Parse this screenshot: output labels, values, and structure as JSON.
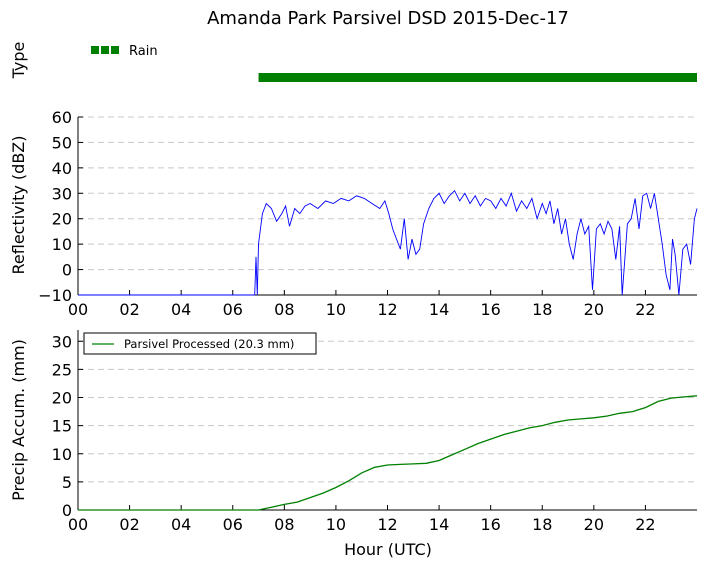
{
  "title": "Amanda Park Parsivel DSD 2015-Dec-17",
  "colors": {
    "rain": "#008000",
    "reflectivity": "#0000ff",
    "accum": "#008000",
    "grid": "#c8c8c8"
  },
  "chart_data": [
    {
      "type": "bar",
      "panel": "type",
      "ylabel": "Type",
      "legend": [
        {
          "name": "Rain",
          "color": "#008000"
        }
      ],
      "legend_position": "top-left",
      "segments": [
        {
          "label": "Rain",
          "x_start": 7.0,
          "x_end": 24.0
        }
      ],
      "xlim": [
        0,
        24
      ]
    },
    {
      "type": "line",
      "panel": "reflectivity",
      "ylabel": "Reflectivity (dBZ)",
      "xlim": [
        0,
        24
      ],
      "ylim": [
        -10,
        60
      ],
      "yticks": [
        "60",
        "50",
        "40",
        "30",
        "20",
        "10",
        "0",
        "−10"
      ],
      "xticks": [
        "00",
        "02",
        "04",
        "06",
        "08",
        "10",
        "12",
        "14",
        "16",
        "18",
        "20",
        "22"
      ],
      "grid": "horizontal-dashed",
      "series": [
        {
          "color": "#0000ff",
          "x": [
            0,
            6.85,
            6.9,
            6.95,
            7.0,
            7.05,
            7.15,
            7.3,
            7.5,
            7.7,
            7.9,
            8.05,
            8.2,
            8.4,
            8.6,
            8.8,
            9.0,
            9.3,
            9.6,
            9.9,
            10.2,
            10.5,
            10.8,
            11.1,
            11.4,
            11.7,
            11.9,
            12.05,
            12.2,
            12.35,
            12.5,
            12.65,
            12.8,
            12.95,
            13.1,
            13.25,
            13.4,
            13.6,
            13.8,
            14.0,
            14.2,
            14.4,
            14.6,
            14.8,
            15.0,
            15.2,
            15.4,
            15.6,
            15.8,
            16.0,
            16.2,
            16.4,
            16.6,
            16.8,
            17.0,
            17.2,
            17.4,
            17.6,
            17.8,
            18.0,
            18.15,
            18.3,
            18.45,
            18.6,
            18.75,
            18.9,
            19.05,
            19.2,
            19.35,
            19.5,
            19.65,
            19.8,
            19.95,
            20.1,
            20.25,
            20.4,
            20.55,
            20.7,
            20.85,
            21.0,
            21.1,
            21.2,
            21.3,
            21.45,
            21.6,
            21.75,
            21.9,
            22.05,
            22.2,
            22.35,
            22.5,
            22.65,
            22.8,
            22.95,
            23.05,
            23.15,
            23.3,
            23.45,
            23.6,
            23.75,
            23.9,
            24.0
          ],
          "values": [
            -10,
            -10,
            5,
            -10,
            10,
            14,
            22,
            26,
            24,
            19,
            22,
            25,
            17,
            24,
            22,
            25,
            26,
            24,
            27,
            26,
            28,
            27,
            29,
            28,
            26,
            24,
            27,
            22,
            16,
            12,
            8,
            20,
            4,
            12,
            6,
            8,
            18,
            24,
            28,
            30,
            26,
            29,
            31,
            27,
            30,
            26,
            29,
            25,
            28,
            27,
            24,
            28,
            25,
            30,
            23,
            27,
            24,
            28,
            20,
            26,
            22,
            27,
            18,
            24,
            14,
            20,
            10,
            4,
            14,
            20,
            14,
            17,
            -8,
            16,
            18,
            14,
            19,
            16,
            4,
            17,
            -10,
            4,
            18,
            20,
            28,
            16,
            29,
            30,
            24,
            30,
            20,
            10,
            -2,
            -8,
            12,
            6,
            -10,
            8,
            10,
            2,
            20,
            24
          ]
        }
      ]
    },
    {
      "type": "line",
      "panel": "accumulation",
      "ylabel": "Precip Accum. (mm)",
      "xlabel": "Hour (UTC)",
      "xlim": [
        0,
        24
      ],
      "ylim": [
        0,
        32
      ],
      "yticks": [
        "30",
        "25",
        "20",
        "15",
        "10",
        "5",
        "0"
      ],
      "xticks": [
        "00",
        "02",
        "04",
        "06",
        "08",
        "10",
        "12",
        "14",
        "16",
        "18",
        "20",
        "22"
      ],
      "grid": "horizontal-dashed",
      "legend_position": "top-left",
      "series": [
        {
          "name": "Parsivel Processed (20.3 mm)",
          "color": "#008000",
          "x": [
            0,
            7.0,
            7.5,
            8.0,
            8.5,
            9.0,
            9.5,
            10.0,
            10.5,
            11.0,
            11.5,
            12.0,
            12.5,
            13.0,
            13.5,
            14.0,
            14.5,
            15.0,
            15.5,
            16.0,
            16.5,
            17.0,
            17.5,
            18.0,
            18.5,
            19.0,
            19.5,
            20.0,
            20.5,
            21.0,
            21.5,
            22.0,
            22.5,
            23.0,
            23.5,
            24.0
          ],
          "values": [
            0,
            0,
            0.5,
            1.0,
            1.4,
            2.2,
            3.0,
            4.0,
            5.2,
            6.6,
            7.6,
            8.0,
            8.1,
            8.2,
            8.3,
            8.8,
            9.8,
            10.8,
            11.8,
            12.6,
            13.4,
            14.0,
            14.6,
            15.0,
            15.6,
            16.0,
            16.2,
            16.4,
            16.7,
            17.2,
            17.5,
            18.2,
            19.3,
            19.9,
            20.1,
            20.3
          ]
        }
      ]
    }
  ]
}
